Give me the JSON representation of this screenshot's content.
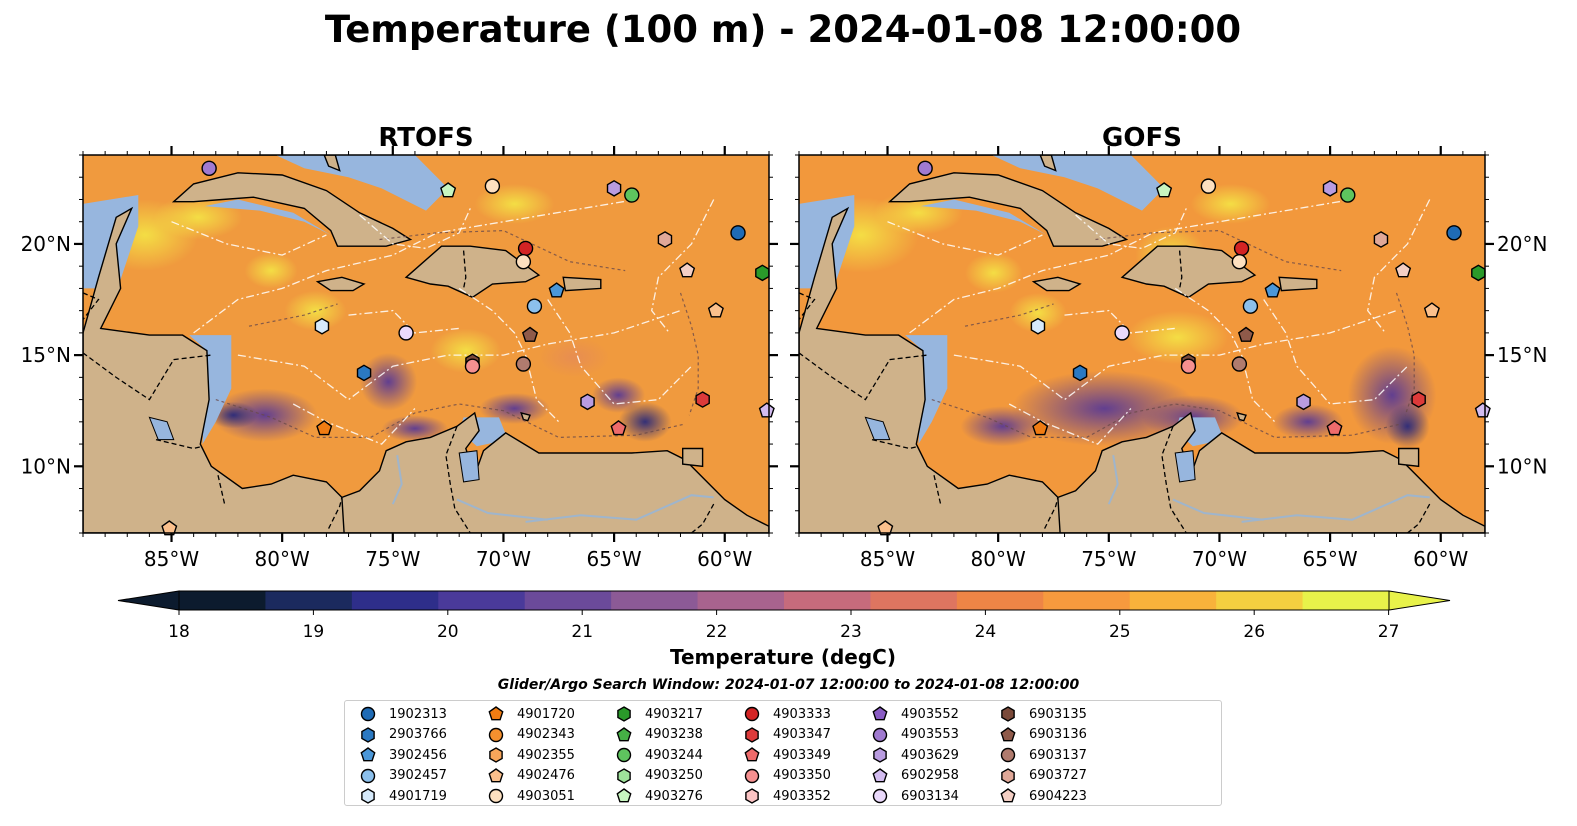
{
  "figure": {
    "title": "Temperature (100 m) - 2024-01-08 12:00:00",
    "panels": [
      {
        "title": "RTOFS"
      },
      {
        "title": "GOFS"
      }
    ]
  },
  "map": {
    "lon_range": [
      -89,
      -58
    ],
    "lat_range": [
      7,
      24
    ],
    "lon_ticks": [
      "85°W",
      "80°W",
      "75°W",
      "70°W",
      "65°W",
      "60°W"
    ],
    "lat_ticks": [
      "20°N",
      "15°N",
      "10°N"
    ],
    "land_color": "#cfb28a",
    "shelf_color": "#97b6de",
    "deep_pacific_color": "#08202f"
  },
  "colorbar": {
    "label": "Temperature (degC)",
    "ticks": [
      "18",
      "19",
      "20",
      "21",
      "22",
      "23",
      "24",
      "25",
      "26",
      "27"
    ],
    "range": [
      18,
      27
    ],
    "colors": [
      "#0c1b2e",
      "#1b2a5e",
      "#2e2e8a",
      "#4a3a9a",
      "#6b4a9a",
      "#8c5a96",
      "#a8638e",
      "#c66b7c",
      "#de7560",
      "#ee8546",
      "#f69a3e",
      "#f8b23b",
      "#f4cf40",
      "#e8f24a"
    ]
  },
  "search_window": "Glider/Argo Search Window: 2024-01-07 12:00:00 to 2024-01-08 12:00:00",
  "legend": [
    {
      "id": "1902313",
      "marker": "circle",
      "color": "#1f6bb5"
    },
    {
      "id": "2903766",
      "marker": "hexagon",
      "color": "#2b79c2"
    },
    {
      "id": "3902456",
      "marker": "pentagon",
      "color": "#4b97d8"
    },
    {
      "id": "3902457",
      "marker": "circle",
      "color": "#8cc0ec"
    },
    {
      "id": "4901719",
      "marker": "hexagon",
      "color": "#d6eafb"
    },
    {
      "id": "4901720",
      "marker": "pentagon",
      "color": "#f07c12"
    },
    {
      "id": "4902343",
      "marker": "circle",
      "color": "#f5902e"
    },
    {
      "id": "4902355",
      "marker": "hexagon",
      "color": "#f8a55a"
    },
    {
      "id": "4902476",
      "marker": "pentagon",
      "color": "#fbc08c"
    },
    {
      "id": "4903051",
      "marker": "circle",
      "color": "#fde0c0"
    },
    {
      "id": "4903217",
      "marker": "hexagon",
      "color": "#2a9a2a"
    },
    {
      "id": "4903238",
      "marker": "pentagon",
      "color": "#45b045"
    },
    {
      "id": "4903244",
      "marker": "circle",
      "color": "#5ec45e"
    },
    {
      "id": "4903250",
      "marker": "hexagon",
      "color": "#9ee29a"
    },
    {
      "id": "4903276",
      "marker": "pentagon",
      "color": "#c8f5c0"
    },
    {
      "id": "4903333",
      "marker": "circle",
      "color": "#d32424"
    },
    {
      "id": "4903347",
      "marker": "hexagon",
      "color": "#dc3a3a"
    },
    {
      "id": "4903349",
      "marker": "pentagon",
      "color": "#ee6b6b"
    },
    {
      "id": "4903350",
      "marker": "circle",
      "color": "#f59090"
    },
    {
      "id": "4903352",
      "marker": "hexagon",
      "color": "#fbc4c4"
    },
    {
      "id": "4903552",
      "marker": "pentagon",
      "color": "#8a5cc4"
    },
    {
      "id": "4903553",
      "marker": "circle",
      "color": "#a07ad0"
    },
    {
      "id": "4903629",
      "marker": "hexagon",
      "color": "#b99ce0"
    },
    {
      "id": "6902958",
      "marker": "pentagon",
      "color": "#d3bcf0"
    },
    {
      "id": "6903134",
      "marker": "circle",
      "color": "#ead9fb"
    },
    {
      "id": "6903135",
      "marker": "hexagon",
      "color": "#7b4a3a"
    },
    {
      "id": "6903136",
      "marker": "pentagon",
      "color": "#8f5a4a"
    },
    {
      "id": "6903137",
      "marker": "circle",
      "color": "#b07b6e"
    },
    {
      "id": "6903727",
      "marker": "hexagon",
      "color": "#e0a898"
    },
    {
      "id": "6904223",
      "marker": "pentagon",
      "color": "#f4cfc4"
    }
  ],
  "floats": [
    {
      "id": "4903553",
      "lon": -83.3,
      "lat": 23.4
    },
    {
      "id": "4903276",
      "lon": -72.5,
      "lat": 22.4
    },
    {
      "id": "4903051",
      "lon": -70.5,
      "lat": 22.6
    },
    {
      "id": "4903629",
      "lon": -65.0,
      "lat": 22.5
    },
    {
      "id": "4903244",
      "lon": -64.2,
      "lat": 22.2
    },
    {
      "id": "1902313",
      "lon": -59.4,
      "lat": 20.5
    },
    {
      "id": "6903727",
      "lon": -62.7,
      "lat": 20.2
    },
    {
      "id": "4903217",
      "lon": -58.3,
      "lat": 18.7
    },
    {
      "id": "4903333",
      "lon": -69.0,
      "lat": 19.8
    },
    {
      "id": "4903051",
      "lon": -69.1,
      "lat": 19.2
    },
    {
      "id": "6904223",
      "lon": -61.7,
      "lat": 18.8
    },
    {
      "id": "3902456",
      "lon": -67.6,
      "lat": 17.9
    },
    {
      "id": "3902457",
      "lon": -68.6,
      "lat": 17.2
    },
    {
      "id": "4902476",
      "lon": -60.4,
      "lat": 17.0
    },
    {
      "id": "4901719",
      "lon": -78.2,
      "lat": 16.3
    },
    {
      "id": "6903134",
      "lon": -74.4,
      "lat": 16.0
    },
    {
      "id": "6903136",
      "lon": -68.8,
      "lat": 15.9
    },
    {
      "id": "6903135",
      "lon": -71.4,
      "lat": 14.7
    },
    {
      "id": "4903350",
      "lon": -71.4,
      "lat": 14.5
    },
    {
      "id": "6903137",
      "lon": -69.1,
      "lat": 14.6
    },
    {
      "id": "2903766",
      "lon": -76.3,
      "lat": 14.2
    },
    {
      "id": "4903629",
      "lon": -66.2,
      "lat": 12.9
    },
    {
      "id": "4903347",
      "lon": -61.0,
      "lat": 13.0
    },
    {
      "id": "6902958",
      "lon": -58.1,
      "lat": 12.5
    },
    {
      "id": "4901720",
      "lon": -78.1,
      "lat": 11.7
    },
    {
      "id": "4903349",
      "lon": -64.8,
      "lat": 11.7
    },
    {
      "id": "4902476",
      "lon": -85.1,
      "lat": 7.2
    }
  ]
}
